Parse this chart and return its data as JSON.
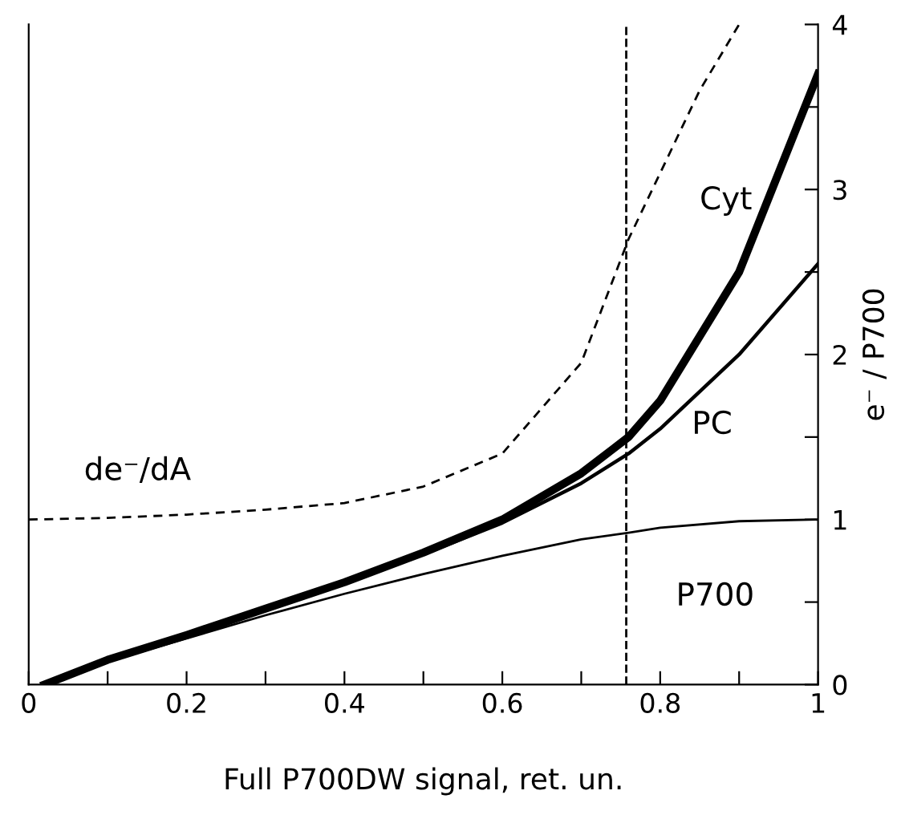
{
  "chart_data": {
    "type": "line",
    "xlabel": "Full P700DW signal, ret. un.",
    "ylabel": "e⁻ / P700",
    "xlim": [
      0,
      1
    ],
    "ylim": [
      0,
      4
    ],
    "xticks": [
      0,
      {
        "value": 0.1,
        "label": null
      },
      0.2,
      {
        "value": 0.3,
        "label": null
      },
      0.4,
      {
        "value": 0.5,
        "label": null
      },
      0.6,
      {
        "value": 0.7,
        "label": null
      },
      0.8,
      {
        "value": 0.9,
        "label": null
      },
      1
    ],
    "yticks": [
      0,
      {
        "value": 0.5,
        "label": null
      },
      1,
      {
        "value": 1.5,
        "label": null
      },
      2,
      {
        "value": 2.5,
        "label": null
      },
      3,
      {
        "value": 3.5,
        "label": null
      },
      4
    ],
    "grid": false,
    "legend": false,
    "marker": "none",
    "ref_lines": [
      {
        "axis": "x",
        "value": 0.757,
        "label": null,
        "color": "#000000",
        "line_style": "dashed"
      }
    ],
    "series": [
      {
        "name": "de⁻/dA",
        "color": "#000000",
        "line_style": "dashed",
        "x": [
          0,
          0.1,
          0.2,
          0.3,
          0.4,
          0.5,
          0.6,
          0.7,
          0.76,
          0.8,
          0.85,
          0.9
        ],
        "values": [
          1.0,
          1.01,
          1.03,
          1.06,
          1.1,
          1.2,
          1.4,
          1.95,
          2.7,
          3.1,
          3.6,
          4.0
        ]
      },
      {
        "name": "Cyt",
        "color": "#000000",
        "line_style": "solid",
        "x": [
          0.02,
          0.1,
          0.2,
          0.3,
          0.4,
          0.5,
          0.6,
          0.7,
          0.76,
          0.8,
          0.9,
          1.0
        ],
        "values": [
          0,
          0.15,
          0.3,
          0.46,
          0.62,
          0.8,
          1.0,
          1.28,
          1.5,
          1.72,
          2.5,
          3.7
        ]
      },
      {
        "name": "PC",
        "color": "#000000",
        "line_style": "solid",
        "x": [
          0.02,
          0.1,
          0.2,
          0.3,
          0.4,
          0.5,
          0.6,
          0.7,
          0.76,
          0.8,
          0.9,
          1.0
        ],
        "values": [
          0,
          0.15,
          0.3,
          0.46,
          0.62,
          0.79,
          0.98,
          1.22,
          1.4,
          1.55,
          2.0,
          2.55
        ]
      },
      {
        "name": "P700",
        "color": "#000000",
        "line_style": "solid",
        "x": [
          0.02,
          0.1,
          0.2,
          0.3,
          0.4,
          0.5,
          0.6,
          0.7,
          0.76,
          0.8,
          0.9,
          1.0
        ],
        "values": [
          0,
          0.14,
          0.28,
          0.42,
          0.55,
          0.67,
          0.78,
          0.88,
          0.92,
          0.95,
          0.99,
          1.0
        ]
      }
    ]
  }
}
